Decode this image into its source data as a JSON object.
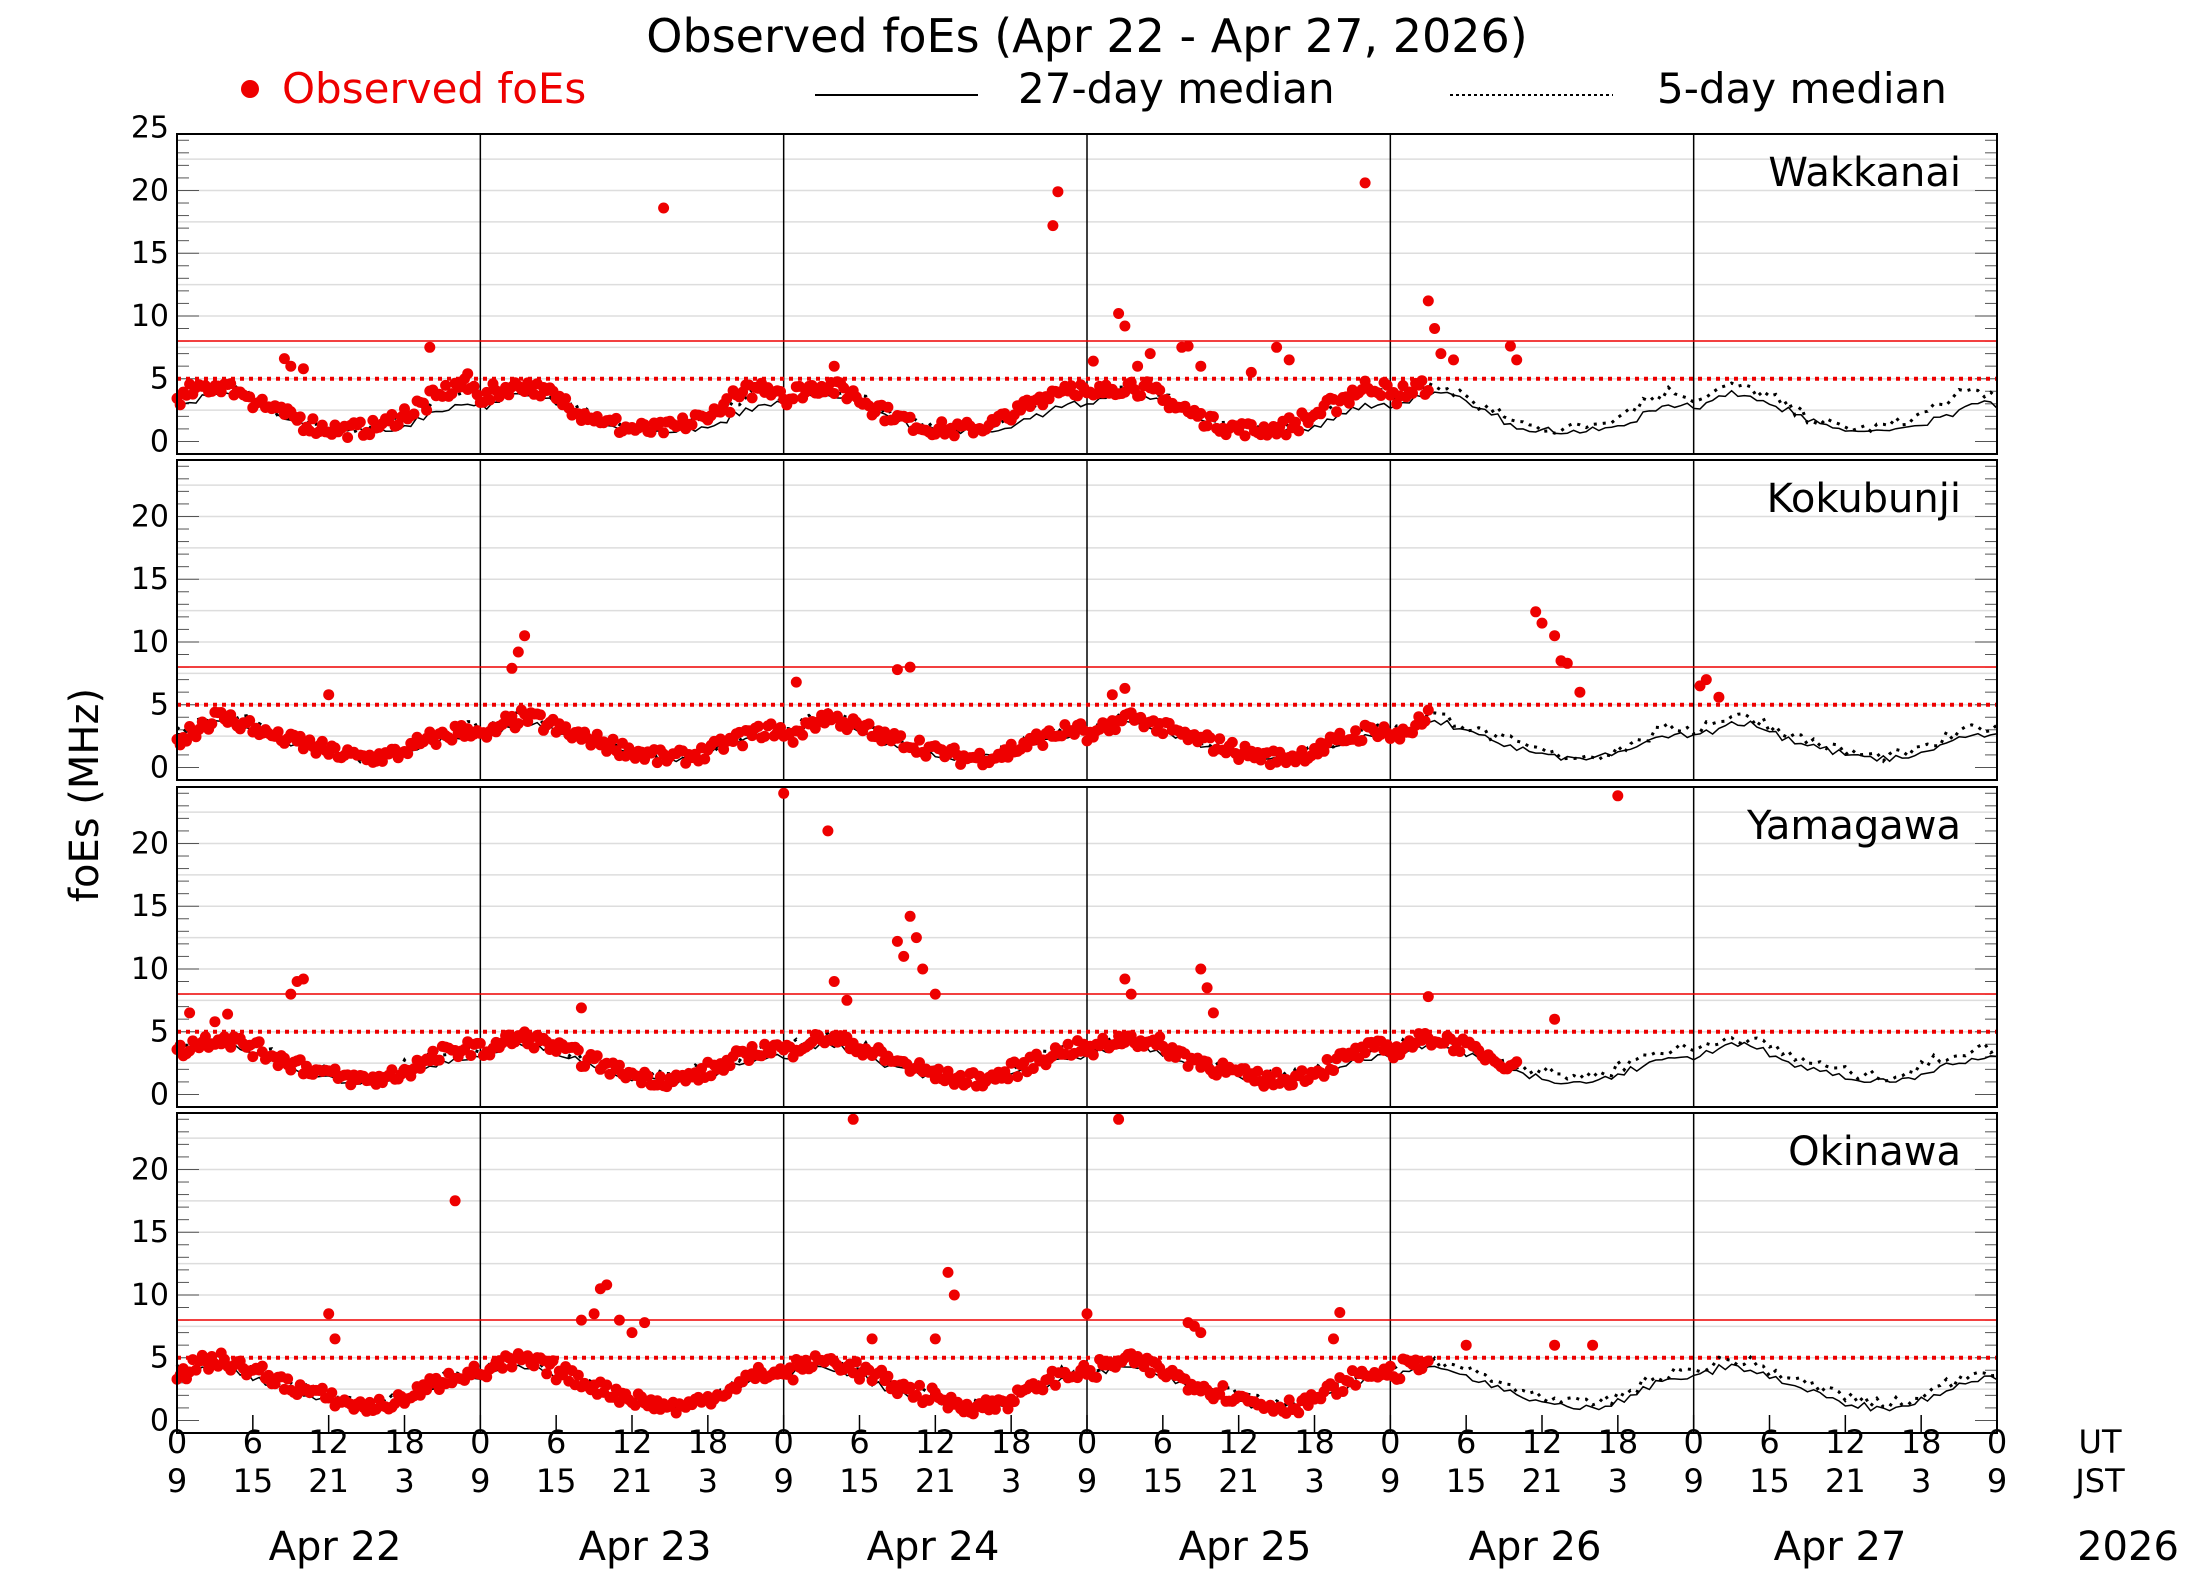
{
  "chart_data": {
    "type": "scatter",
    "title": "Observed foEs (Apr 22 - Apr 27, 2026)",
    "ylabel": "foEs (MHz)",
    "ylim": [
      -1,
      24.5
    ],
    "y_ticks": [
      0,
      5,
      10,
      15,
      20,
      25
    ],
    "reference_levels": {
      "solid_red_MHz": 8,
      "dotted_red_MHz": 5
    },
    "legend": {
      "observed": "Observed foEs",
      "median27": "27-day median",
      "median5": "5-day median"
    },
    "x_hour_ticks_ut": [
      "0",
      "6",
      "12",
      "18",
      "0",
      "6",
      "12",
      "18",
      "0",
      "6",
      "12",
      "18",
      "0",
      "6",
      "12",
      "18",
      "0",
      "6",
      "12",
      "18",
      "0",
      "6",
      "12",
      "18",
      "0"
    ],
    "x_hour_ticks_jst": [
      "9",
      "15",
      "21",
      "3",
      "9",
      "15",
      "21",
      "3",
      "9",
      "15",
      "21",
      "3",
      "9",
      "15",
      "21",
      "3",
      "9",
      "15",
      "21",
      "3",
      "9",
      "15",
      "21",
      "3",
      "9"
    ],
    "x_axis_labels": {
      "ut": "UT",
      "jst": "JST"
    },
    "days": [
      "Apr 22",
      "Apr 23",
      "Apr 24",
      "Apr 25",
      "Apr 26",
      "Apr 27"
    ],
    "year": "2026",
    "colors": {
      "observed": "#ee0000",
      "median": "#000000",
      "grid": "#dddddd"
    },
    "stations": [
      {
        "name": "Wakkanai",
        "median27_hourly": [
          2.8,
          3.2,
          3.6,
          3.8,
          3.7,
          3.5,
          3.0,
          2.5,
          2.0,
          1.6,
          1.2,
          1.0,
          0.9,
          0.8,
          0.8,
          0.8,
          0.9,
          1.0,
          1.3,
          1.7,
          2.2,
          2.6,
          2.9,
          3.0
        ],
        "median5_hourly": [
          3.4,
          3.8,
          4.2,
          4.4,
          4.2,
          3.9,
          3.4,
          2.8,
          2.3,
          1.9,
          1.5,
          1.2,
          1.1,
          1.0,
          1.1,
          1.2,
          1.5,
          1.8,
          2.3,
          2.8,
          3.3,
          3.7,
          4.0,
          3.8
        ],
        "observed_diurnal": [
          3.5,
          4.0,
          4.3,
          4.5,
          4.2,
          3.8,
          3.2,
          2.7,
          2.2,
          1.8,
          1.4,
          1.1,
          1.0,
          0.9,
          1.0,
          1.1,
          1.4,
          1.8,
          2.3,
          2.9,
          3.5,
          4.0,
          4.4,
          4.2
        ],
        "observed_end_hour": 99,
        "observed_spikes": [
          [
            1,
            8.5,
            6.6
          ],
          [
            1,
            9,
            6.0
          ],
          [
            1,
            10,
            5.8
          ],
          [
            1,
            20,
            7.5
          ],
          [
            1,
            23,
            5.4
          ],
          [
            2,
            14.5,
            18.6
          ],
          [
            3,
            4,
            6.0
          ],
          [
            3,
            21.3,
            17.2
          ],
          [
            3,
            21.7,
            19.9
          ],
          [
            4,
            0.5,
            6.4
          ],
          [
            4,
            2.5,
            10.2
          ],
          [
            4,
            3,
            9.2
          ],
          [
            4,
            4,
            6.0
          ],
          [
            4,
            5,
            7.0
          ],
          [
            4,
            7.5,
            7.5
          ],
          [
            4,
            8,
            7.6
          ],
          [
            4,
            9,
            6.0
          ],
          [
            4,
            13,
            5.5
          ],
          [
            4,
            15,
            7.5
          ],
          [
            4,
            16,
            6.5
          ],
          [
            4,
            22,
            20.6
          ],
          [
            5,
            3,
            11.2
          ],
          [
            5,
            3.5,
            9.0
          ],
          [
            5,
            4,
            7.0
          ],
          [
            5,
            5,
            6.5
          ],
          [
            5,
            9.5,
            7.6
          ],
          [
            5,
            10,
            6.5
          ]
        ]
      },
      {
        "name": "Kokubunji",
        "median27_hourly": [
          2.5,
          2.9,
          3.3,
          3.6,
          3.5,
          3.2,
          2.8,
          2.4,
          2.0,
          1.8,
          1.5,
          1.2,
          1.0,
          0.8,
          0.7,
          0.7,
          0.8,
          0.9,
          1.2,
          1.6,
          2.0,
          2.3,
          2.5,
          2.6
        ],
        "median5_hourly": [
          3.0,
          3.5,
          3.9,
          4.2,
          4.0,
          3.7,
          3.2,
          2.8,
          2.4,
          2.1,
          1.8,
          1.5,
          1.2,
          1.0,
          0.9,
          0.9,
          1.0,
          1.2,
          1.5,
          1.9,
          2.4,
          2.8,
          3.1,
          3.2
        ],
        "observed_diurnal": [
          2.4,
          3.0,
          3.6,
          4.0,
          3.8,
          3.4,
          3.0,
          2.6,
          2.3,
          2.1,
          1.8,
          1.5,
          1.2,
          1.0,
          0.8,
          0.8,
          0.9,
          1.1,
          1.5,
          1.9,
          2.3,
          2.6,
          2.9,
          3.0
        ],
        "observed_end_hour": 99,
        "observed_spikes": [
          [
            1,
            12,
            5.8
          ],
          [
            2,
            2.5,
            7.9
          ],
          [
            2,
            3,
            9.2
          ],
          [
            2,
            3.5,
            10.5
          ],
          [
            3,
            1,
            6.8
          ],
          [
            3,
            9,
            7.8
          ],
          [
            3,
            10,
            8.0
          ],
          [
            4,
            2,
            5.8
          ],
          [
            4,
            3,
            6.3
          ],
          [
            5,
            11.5,
            12.4
          ],
          [
            5,
            12,
            11.5
          ],
          [
            5,
            13,
            10.5
          ],
          [
            5,
            13.5,
            8.5
          ],
          [
            5,
            14,
            8.3
          ],
          [
            5,
            15,
            6.0
          ],
          [
            6,
            0.5,
            6.5
          ],
          [
            6,
            1,
            7.0
          ],
          [
            6,
            2,
            5.6
          ]
        ]
      },
      {
        "name": "Yamagawa",
        "median27_hourly": [
          3.0,
          3.4,
          3.8,
          4.0,
          3.9,
          3.6,
          3.2,
          2.8,
          2.4,
          2.1,
          1.8,
          1.5,
          1.3,
          1.1,
          1.0,
          1.0,
          1.1,
          1.3,
          1.6,
          2.0,
          2.4,
          2.7,
          2.9,
          3.0
        ],
        "median5_hourly": [
          3.6,
          4.0,
          4.4,
          4.6,
          4.4,
          4.1,
          3.7,
          3.3,
          2.9,
          2.6,
          2.3,
          2.0,
          1.8,
          1.6,
          1.5,
          1.5,
          1.6,
          1.9,
          2.3,
          2.7,
          3.1,
          3.4,
          3.6,
          3.7
        ],
        "observed_diurnal": [
          3.5,
          4.0,
          4.3,
          4.5,
          4.3,
          4.0,
          3.6,
          3.2,
          2.8,
          2.5,
          2.1,
          1.8,
          1.5,
          1.3,
          1.2,
          1.2,
          1.3,
          1.6,
          2.0,
          2.4,
          2.9,
          3.3,
          3.6,
          3.7
        ],
        "observed_end_hour": 106,
        "observed_spikes": [
          [
            1,
            1,
            6.5
          ],
          [
            1,
            3,
            5.8
          ],
          [
            1,
            4,
            6.4
          ],
          [
            1,
            9,
            8.0
          ],
          [
            1,
            9.5,
            9.0
          ],
          [
            1,
            10,
            9.2
          ],
          [
            2,
            8,
            6.9
          ],
          [
            3,
            0,
            24.0
          ],
          [
            3,
            3.5,
            21.0
          ],
          [
            3,
            4,
            9.0
          ],
          [
            3,
            5,
            7.5
          ],
          [
            3,
            9,
            12.2
          ],
          [
            3,
            9.5,
            11.0
          ],
          [
            3,
            10,
            14.2
          ],
          [
            3,
            10.5,
            12.5
          ],
          [
            3,
            11,
            10.0
          ],
          [
            3,
            12,
            8.0
          ],
          [
            4,
            3,
            9.2
          ],
          [
            4,
            3.5,
            8.0
          ],
          [
            4,
            9,
            10.0
          ],
          [
            4,
            9.5,
            8.5
          ],
          [
            4,
            10,
            6.5
          ],
          [
            5,
            3,
            7.8
          ],
          [
            5,
            13,
            6.0
          ],
          [
            5,
            18,
            23.8
          ]
        ]
      },
      {
        "name": "Okinawa",
        "median27_hourly": [
          3.5,
          3.9,
          4.2,
          4.3,
          4.1,
          3.8,
          3.4,
          3.0,
          2.6,
          2.3,
          2.0,
          1.7,
          1.4,
          1.2,
          1.0,
          1.0,
          1.1,
          1.3,
          1.7,
          2.1,
          2.6,
          3.0,
          3.3,
          3.4
        ],
        "median5_hourly": [
          4.0,
          4.4,
          4.7,
          4.8,
          4.6,
          4.3,
          3.9,
          3.5,
          3.1,
          2.8,
          2.5,
          2.2,
          1.9,
          1.6,
          1.4,
          1.3,
          1.4,
          1.6,
          2.0,
          2.5,
          3.0,
          3.5,
          3.8,
          3.9
        ],
        "observed_diurnal": [
          3.8,
          4.3,
          4.6,
          4.8,
          4.5,
          4.2,
          3.8,
          3.4,
          3.0,
          2.6,
          2.3,
          2.0,
          1.7,
          1.4,
          1.2,
          1.1,
          1.2,
          1.5,
          1.9,
          2.4,
          2.9,
          3.4,
          3.7,
          3.8
        ],
        "observed_end_hour": 99,
        "observed_spikes": [
          [
            1,
            12,
            8.5
          ],
          [
            1,
            12.5,
            6.5
          ],
          [
            1,
            22,
            17.5
          ],
          [
            2,
            8,
            8.0
          ],
          [
            2,
            9,
            8.5
          ],
          [
            2,
            9.5,
            10.5
          ],
          [
            2,
            10,
            10.8
          ],
          [
            2,
            11,
            8.0
          ],
          [
            2,
            12,
            7.0
          ],
          [
            2,
            13,
            7.8
          ],
          [
            3,
            5.5,
            24.0
          ],
          [
            3,
            7,
            6.5
          ],
          [
            3,
            13,
            11.8
          ],
          [
            3,
            13.5,
            10.0
          ],
          [
            3,
            12,
            6.5
          ],
          [
            4,
            0,
            8.5
          ],
          [
            4,
            2.5,
            24.0
          ],
          [
            4,
            8,
            7.8
          ],
          [
            4,
            8.5,
            7.5
          ],
          [
            4,
            9,
            7.0
          ],
          [
            4,
            20,
            8.6
          ],
          [
            4,
            19.5,
            6.5
          ],
          [
            5,
            6,
            6.0
          ],
          [
            5,
            13,
            6.0
          ],
          [
            5,
            16,
            6.0
          ]
        ]
      }
    ]
  }
}
